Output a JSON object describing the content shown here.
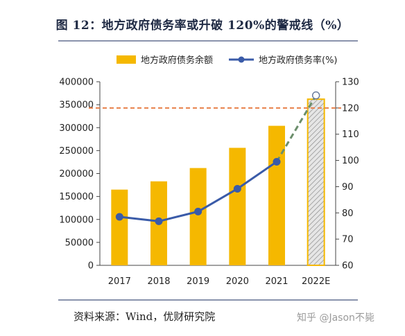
{
  "header": {
    "title": "图 12：地方政府债务率或升破 120%的警戒线（%）"
  },
  "footer": {
    "source": "资料来源：Wind，优财研究院",
    "watermark": "知乎 @Jason不毙"
  },
  "colors": {
    "bar": "#F5B800",
    "bar_estimate_fill": "#e6e6e6",
    "line": "#3A5BA8",
    "reference": "#E8804A",
    "axis": "#444444"
  },
  "chart_data": {
    "type": "bar",
    "categories": [
      "2017",
      "2018",
      "2019",
      "2020",
      "2021",
      "2022E"
    ],
    "series": [
      {
        "name": "地方政府债务余额",
        "type": "bar",
        "axis": "left",
        "values": [
          165000,
          183000,
          212000,
          256000,
          304000,
          362000
        ]
      },
      {
        "name": "地方政府债务率(%)",
        "type": "line",
        "axis": "right",
        "values": [
          78.5,
          76.8,
          80.5,
          89.2,
          99.5,
          124.8
        ]
      }
    ],
    "y_left": {
      "min": 0,
      "max": 400000,
      "ticks": [
        0,
        50000,
        100000,
        150000,
        200000,
        250000,
        300000,
        350000,
        400000
      ]
    },
    "y_right": {
      "min": 60,
      "max": 130,
      "ticks": [
        60,
        70,
        80,
        90,
        100,
        110,
        120,
        130
      ]
    },
    "reference_line": {
      "value": 120,
      "axis": "right"
    },
    "estimate_category": "2022E",
    "legend": {
      "position": "top",
      "items": [
        "地方政府债务余额",
        "地方政府债务率(%)"
      ]
    }
  }
}
